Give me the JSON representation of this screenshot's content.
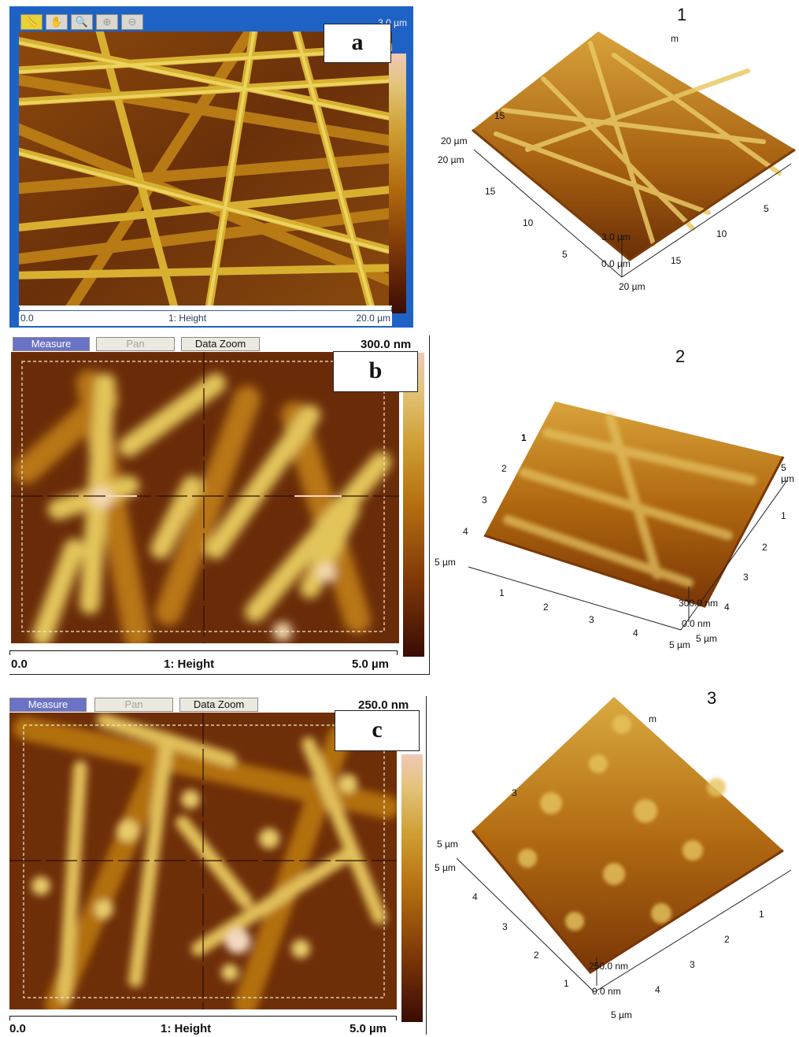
{
  "panel_a": {
    "label": "a",
    "toolbar_icons": [
      "ruler-icon",
      "hand-icon",
      "magnifier-icon",
      "zoom-in-icon",
      "zoom-out-icon"
    ],
    "scale_max": "3.0 µm",
    "footer_left": "0.0",
    "footer_center": "1: Height",
    "footer_right": "20.0 µm",
    "view3d": {
      "number": "1",
      "ticks": [
        "20 µm",
        "20 µm",
        "15",
        "10",
        "5",
        "3.0 µm",
        "0.0 µm",
        "20 µm",
        "15",
        "10",
        "5",
        "15"
      ],
      "top_fragment": "m"
    }
  },
  "panel_b": {
    "label": "b",
    "buttons": {
      "measure": "Measure",
      "pan": "Pan",
      "zoom": "Data Zoom"
    },
    "scale_max": "300.0 nm",
    "footer_left": "0.0",
    "footer_center": "1: Height",
    "footer_right": "5.0 µm",
    "view3d": {
      "number": "2",
      "ticks": [
        "1",
        "2",
        "3",
        "4",
        "5 µm",
        "1",
        "2",
        "3",
        "4",
        "5 µm",
        "300.0 nm",
        "0.0 nm",
        "5 µm",
        "4",
        "3",
        "2",
        "1",
        "5 µm"
      ]
    }
  },
  "panel_c": {
    "label": "c",
    "buttons": {
      "measure": "Measure",
      "pan": "Pan",
      "zoom": "Data Zoom"
    },
    "scale_max": "250.0 nm",
    "footer_left": "0.0",
    "footer_center": "1: Height",
    "footer_right": "5.0 µm",
    "view3d": {
      "number": "3",
      "ticks": [
        "5 µm",
        "5 µm",
        "4",
        "3",
        "2",
        "1",
        "250.0 nm",
        "0.0 nm",
        "5 µm",
        "4",
        "3",
        "2",
        "1",
        "3",
        "m"
      ]
    }
  },
  "colors": {
    "afm_dark": "#4a1806",
    "afm_mid": "#b06a10",
    "afm_light": "#e8d06a",
    "window_blue": "#1e62c6"
  }
}
